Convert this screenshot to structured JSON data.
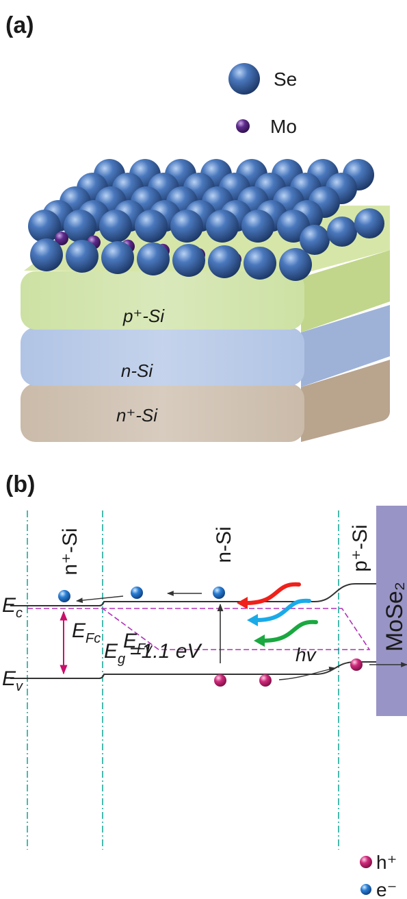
{
  "panel_a": {
    "label": "(a)",
    "legend": [
      "Se",
      "Mo"
    ],
    "layers": [
      "p⁺-Si",
      "n-Si",
      "n⁺-Si"
    ]
  },
  "panel_b": {
    "label": "(b)",
    "regions": [
      "n⁺-Si",
      "n-Si",
      "p⁺-Si"
    ],
    "contact": "MoSe₂",
    "ec": {
      "symbol": "E",
      "sub": "c"
    },
    "efc": {
      "symbol": "E",
      "sub": "Fc"
    },
    "gap": {
      "symbol": "E",
      "sub": "g",
      "text": "=1.1 eV"
    },
    "photon": "hv",
    "efv": {
      "symbol": "E",
      "sub": "Fv"
    },
    "ev": {
      "symbol": "E",
      "sub": "v"
    },
    "legend": [
      "h⁺",
      "e⁻"
    ]
  }
}
